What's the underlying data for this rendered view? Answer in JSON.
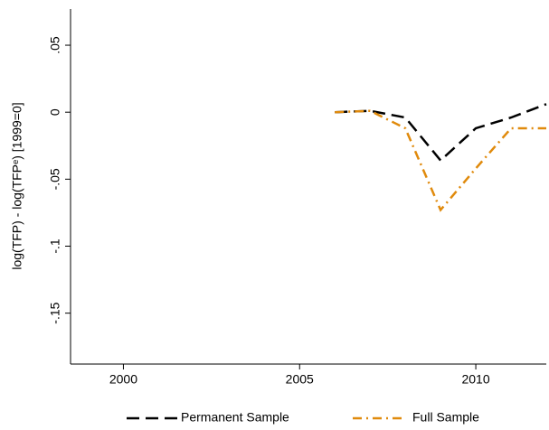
{
  "chart_data": {
    "type": "line",
    "y_label": "log(TFP) - log(TFPᵉ)  [1999=0]",
    "x": [
      2006,
      2007,
      2008,
      2009,
      2010,
      2011,
      2012
    ],
    "series": [
      {
        "name": "Permanent Sample",
        "color": "#000000",
        "dash": "14,7",
        "values": [
          0,
          0.001,
          -0.004,
          -0.036,
          -0.012,
          -0.004,
          0.006
        ]
      },
      {
        "name": "Full Sample",
        "color": "#e08a0c",
        "dash": "10,5,2,5",
        "values": [
          0,
          0.001,
          -0.012,
          -0.073,
          -0.042,
          -0.012,
          -0.012
        ]
      }
    ],
    "xlim": [
      1998.5,
      2012
    ],
    "xticks": [
      2000,
      2005,
      2010
    ],
    "ylim": [
      -0.188,
      0.077
    ],
    "yticks": [
      {
        "value": 0.05,
        "label": ".05"
      },
      0,
      {
        "value": -0.05,
        "label": "-.05"
      },
      {
        "value": -0.1,
        "label": "-.1"
      },
      {
        "value": -0.15,
        "label": "-.15"
      }
    ],
    "legend": "bottom"
  }
}
